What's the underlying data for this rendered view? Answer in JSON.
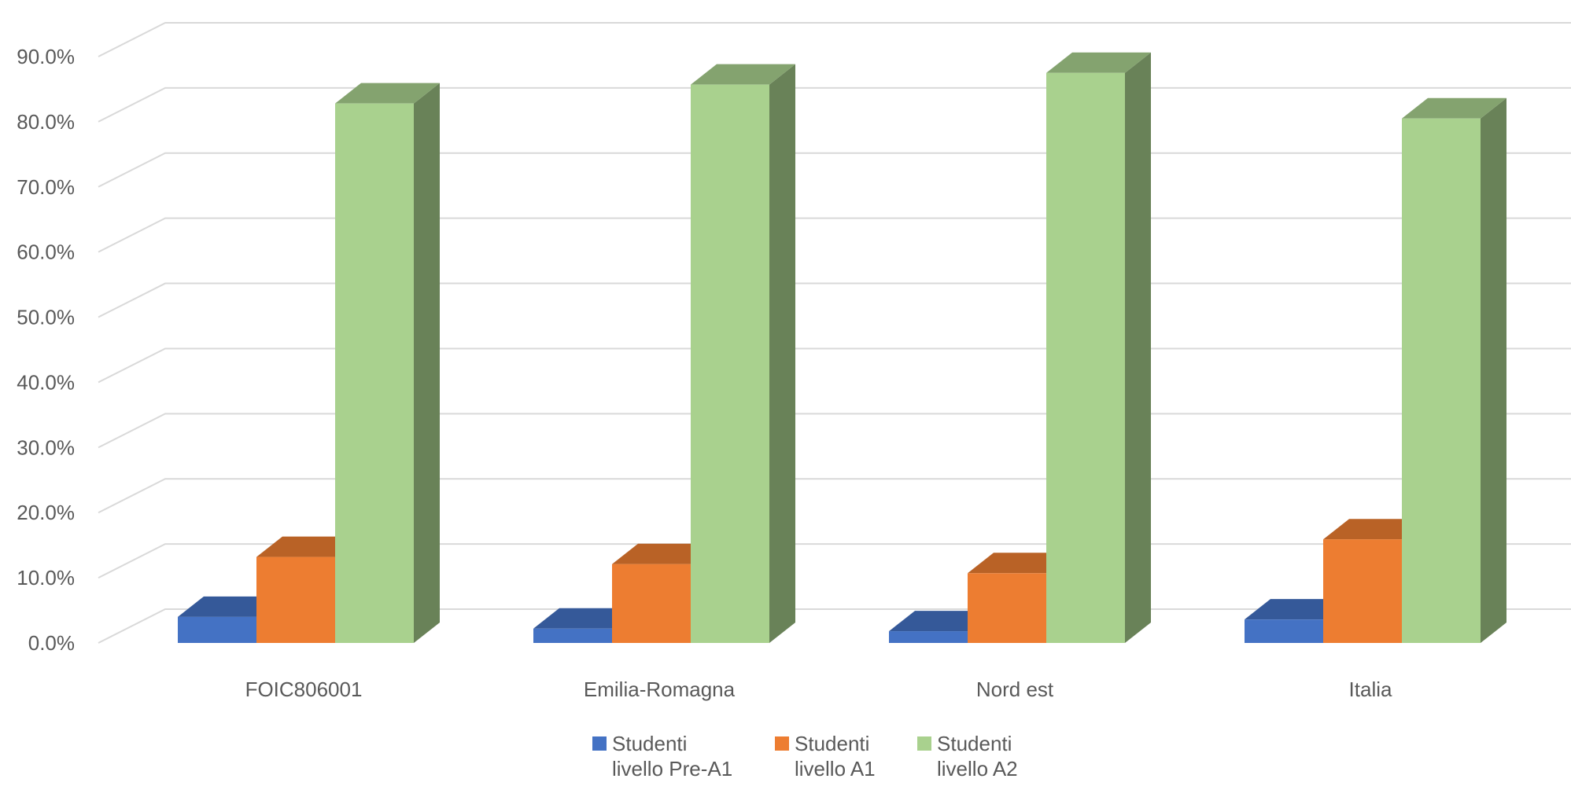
{
  "chart_data": {
    "type": "bar",
    "style": "3d-clustered-column",
    "categories": [
      "FOIC806001",
      "Emilia-Romagna",
      "Nord est",
      "Italia"
    ],
    "series": [
      {
        "name": "Studenti livello Pre-A1",
        "name_lines": [
          "Studenti",
          "livello Pre-A1"
        ],
        "color": "#4472C4",
        "values": [
          4.0,
          2.2,
          1.8,
          3.6
        ]
      },
      {
        "name": "Studenti livello A1",
        "name_lines": [
          "Studenti",
          "livello A1"
        ],
        "color": "#ED7D31",
        "values": [
          13.2,
          12.1,
          10.7,
          15.9
        ]
      },
      {
        "name": "Studenti livello A2",
        "name_lines": [
          "Studenti",
          "livello A2"
        ],
        "color": "#A9D18E",
        "values": [
          82.8,
          85.7,
          87.5,
          80.5
        ]
      }
    ],
    "ylim": [
      0,
      90
    ],
    "y_ticks": [
      "0.0%",
      "10.0%",
      "20.0%",
      "30.0%",
      "40.0%",
      "50.0%",
      "60.0%",
      "70.0%",
      "80.0%",
      "90.0%"
    ],
    "grid": true,
    "legend": "bottom",
    "title": "",
    "xlabel": "",
    "ylabel": ""
  }
}
